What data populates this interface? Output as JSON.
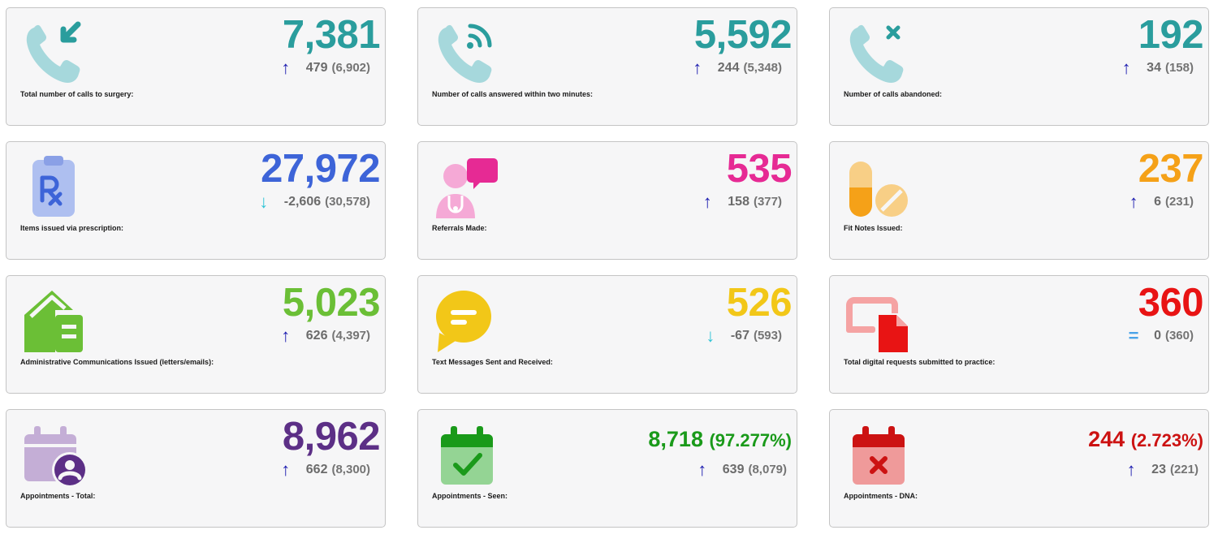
{
  "cards": [
    {
      "value": "7,381",
      "arrow": "↑",
      "delta": "479",
      "previous": "(6,902)",
      "label": "Total number of calls to surgery:",
      "color": "#2a9d9d",
      "arrow_color": "#1c1cb0",
      "icon": "phone-incoming-icon"
    },
    {
      "value": "5,592",
      "arrow": "↑",
      "delta": "244",
      "previous": "(5,348)",
      "label": "Number of calls answered within two minutes:",
      "color": "#2a9d9d",
      "arrow_color": "#1c1cb0",
      "icon": "phone-answered-icon"
    },
    {
      "value": "192",
      "arrow": "↑",
      "delta": "34",
      "previous": "(158)",
      "label": "Number of calls abandoned:",
      "color": "#2a9d9d",
      "arrow_color": "#1c1cb0",
      "icon": "phone-abandoned-icon"
    },
    {
      "value": "27,972",
      "arrow": "↓",
      "delta": "-2,606",
      "previous": "(30,578)",
      "label": "Items issued via prescription:",
      "color": "#3d64d8",
      "arrow_color": "#2fc4d6",
      "icon": "prescription-icon"
    },
    {
      "value": "535",
      "arrow": "↑",
      "delta": "158",
      "previous": "(377)",
      "label": "Referrals Made:",
      "color": "#e62a94",
      "arrow_color": "#1c1cb0",
      "icon": "referral-icon"
    },
    {
      "value": "237",
      "arrow": "↑",
      "delta": "6",
      "previous": "(231)",
      "label": "Fit Notes Issued:",
      "color": "#f5a118",
      "arrow_color": "#1c1cb0",
      "icon": "pills-icon"
    },
    {
      "value": "5,023",
      "arrow": "↑",
      "delta": "626",
      "previous": "(4,397)",
      "label": "Administrative Communications Issued (letters/emails):",
      "color": "#6bbf36",
      "arrow_color": "#1c1cb0",
      "icon": "mail-house-icon"
    },
    {
      "value": "526",
      "arrow": "↓",
      "delta": "-67",
      "previous": "(593)",
      "label": "Text Messages Sent and Received:",
      "color": "#f2c718",
      "arrow_color": "#2fc4d6",
      "icon": "message-bubble-icon"
    },
    {
      "value": "360",
      "arrow": "=",
      "delta": "0",
      "previous": "(360)",
      "label": "Total digital requests submitted to practice:",
      "color": "#e81414",
      "arrow_color": "#4aa3e8",
      "icon": "digital-request-icon"
    },
    {
      "value": "8,962",
      "pct": "",
      "arrow": "↑",
      "delta": "662",
      "previous": "(8,300)",
      "label": "Appointments - Total:",
      "color": "#5c2f86",
      "arrow_color": "#1c1cb0",
      "icon": "calendar-user-icon"
    },
    {
      "value": "8,718",
      "pct": "(97.277%)",
      "arrow": "↑",
      "delta": "639",
      "previous": "(8,079)",
      "label": "Appointments - Seen:",
      "color": "#1a9a1a",
      "arrow_color": "#1c1cb0",
      "icon": "calendar-check-icon"
    },
    {
      "value": "244",
      "pct": "(2.723%)",
      "arrow": "↑",
      "delta": "23",
      "previous": "(221)",
      "label": "Appointments - DNA:",
      "color": "#cc1212",
      "arrow_color": "#1c1cb0",
      "icon": "calendar-cross-icon"
    }
  ]
}
